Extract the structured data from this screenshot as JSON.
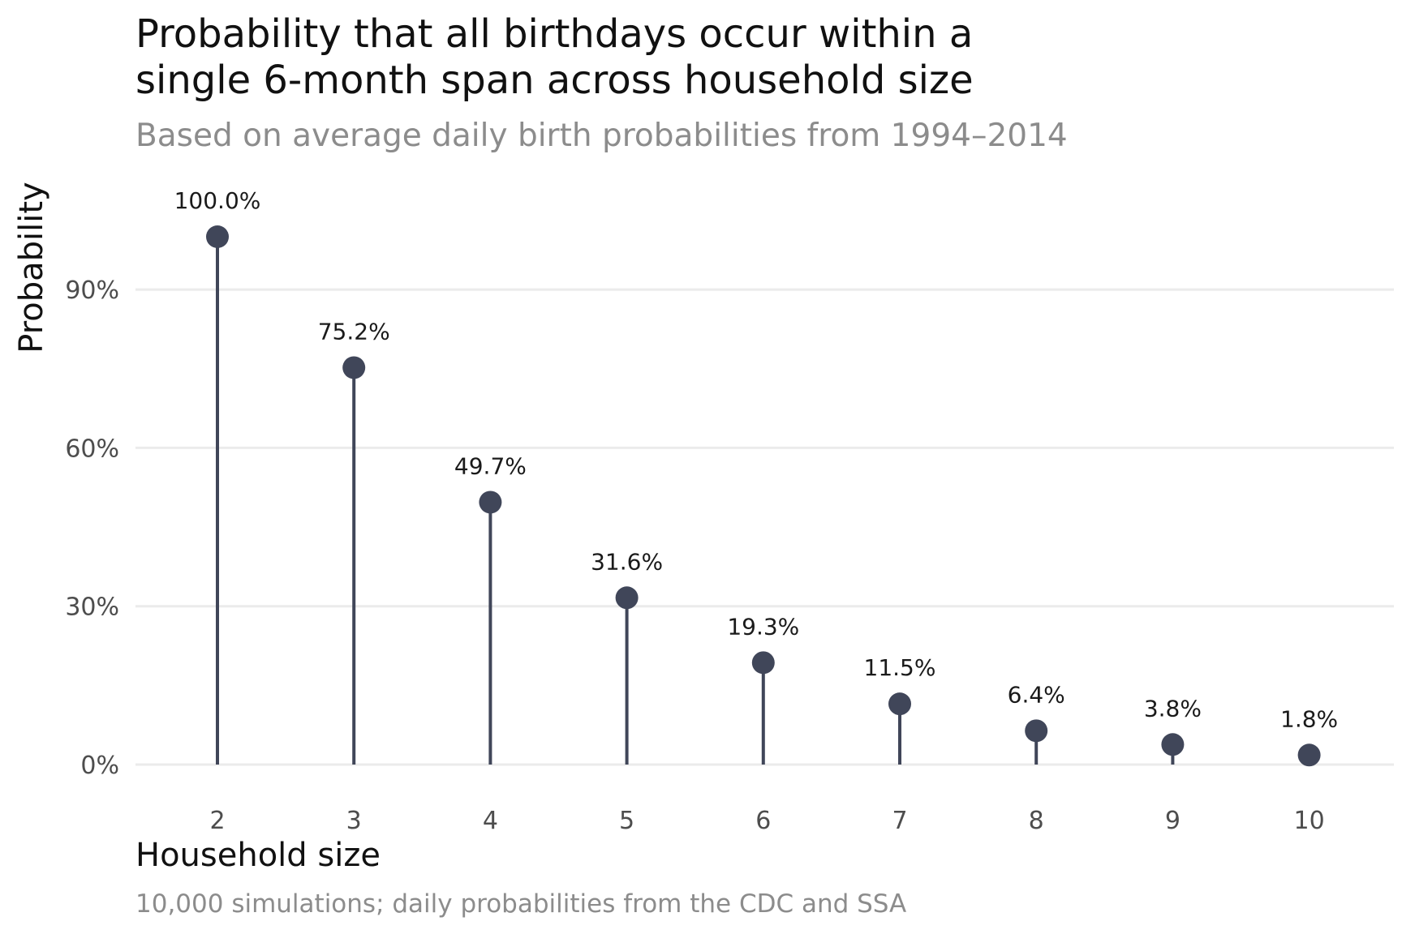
{
  "chart_data": {
    "type": "lollipop",
    "title": "Probability that all birthdays occur within a single 6-month span across household size",
    "title_lines": [
      "Probability that all birthdays occur within a",
      "single 6-month span across household size"
    ],
    "subtitle": "Based on average daily birth probabilities from 1994–2014",
    "xlabel": "Household size",
    "ylabel": "Probability",
    "caption": "10,000 simulations; daily probabilities from the CDC and SSA",
    "categories": [
      "2",
      "3",
      "4",
      "5",
      "6",
      "7",
      "8",
      "9",
      "10"
    ],
    "values": [
      100.0,
      75.2,
      49.7,
      31.6,
      19.3,
      11.5,
      6.4,
      3.8,
      1.8
    ],
    "value_labels": [
      "100.0%",
      "75.2%",
      "49.7%",
      "31.6%",
      "19.3%",
      "11.5%",
      "6.4%",
      "3.8%",
      "1.8%"
    ],
    "yticks": [
      0,
      30,
      60,
      90
    ],
    "ytick_labels": [
      "0%",
      "30%",
      "60%",
      "90%"
    ],
    "ylim": [
      0,
      100
    ],
    "grid": "horizontal-major",
    "legend": "none",
    "colors": {
      "mark": "#404659",
      "grid": "#ebebeb"
    }
  }
}
